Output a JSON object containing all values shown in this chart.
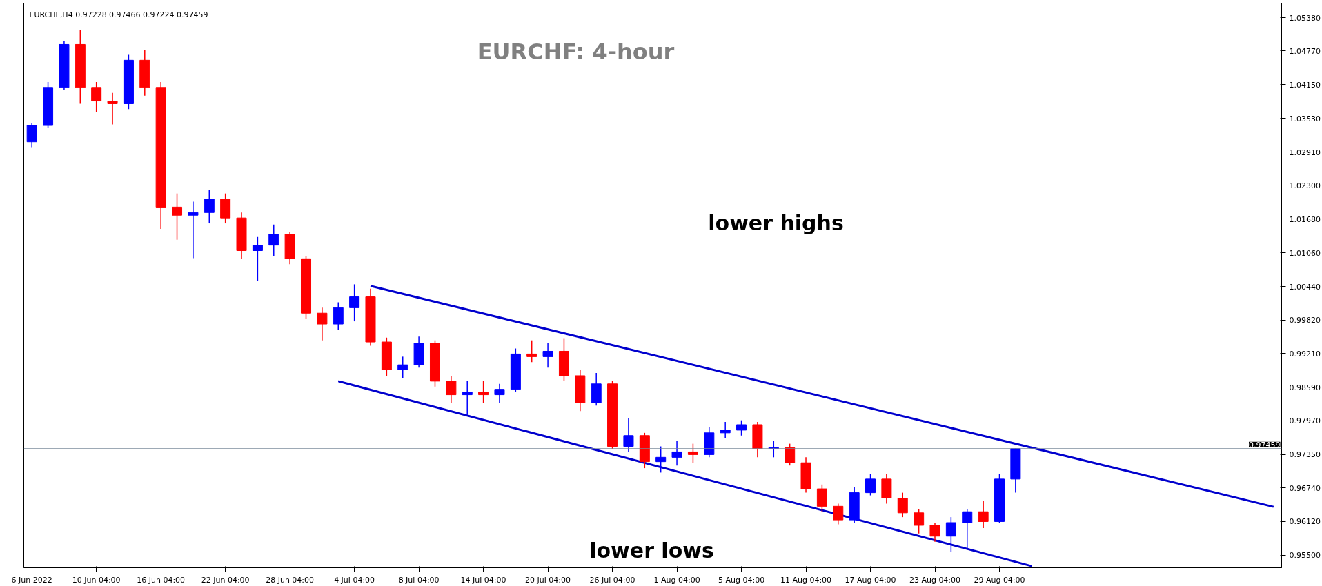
{
  "chart_data": {
    "type": "candlestick",
    "title": "EURCHF: 4-hour",
    "subtitle": "EURCHF,H4  0.97228 0.97466 0.97224 0.97459",
    "categories": [
      "6 Jun 2022",
      null,
      null,
      null,
      "10 Jun 04:00",
      null,
      null,
      null,
      "16 Jun 04:00",
      null,
      null,
      null,
      "22 Jun 04:00",
      null,
      null,
      null,
      "28 Jun 04:00",
      null,
      null,
      null,
      "4 Jul 04:00",
      null,
      null,
      null,
      "8 Jul 04:00",
      null,
      null,
      null,
      "14 Jul 04:00",
      null,
      null,
      null,
      "20 Jul 04:00",
      null,
      null,
      null,
      "26 Jul 04:00",
      null,
      null,
      null,
      "1 Aug 04:00",
      null,
      null,
      null,
      "5 Aug 04:00",
      null,
      null,
      null,
      "11 Aug 04:00",
      null,
      null,
      null,
      "17 Aug 04:00",
      null,
      null,
      null,
      "23 Aug 04:00",
      null,
      null,
      null,
      "29 Aug 04:00",
      null,
      null,
      null,
      null,
      null,
      null,
      null,
      null,
      null,
      null,
      null,
      null,
      null,
      null,
      null,
      null,
      null
    ],
    "ohlc": [
      [
        1.031,
        1.0345,
        1.03,
        1.034
      ],
      [
        1.034,
        1.042,
        1.0335,
        1.041
      ],
      [
        1.041,
        1.0495,
        1.0405,
        1.0489
      ],
      [
        1.0489,
        1.0515,
        1.038,
        1.041
      ],
      [
        1.041,
        1.042,
        1.0365,
        1.0385
      ],
      [
        1.0385,
        1.04,
        1.0342,
        1.038
      ],
      [
        1.038,
        1.047,
        1.037,
        1.046
      ],
      [
        1.046,
        1.0479,
        1.0395,
        1.041
      ],
      [
        1.041,
        1.042,
        1.015,
        1.019
      ],
      [
        1.019,
        1.0215,
        1.013,
        1.0175
      ],
      [
        1.0175,
        1.02,
        1.0096,
        1.018
      ],
      [
        1.018,
        1.0222,
        1.016,
        1.0205
      ],
      [
        1.0205,
        1.0215,
        1.016,
        1.017
      ],
      [
        1.017,
        1.018,
        1.0095,
        1.011
      ],
      [
        1.011,
        1.0135,
        1.0054,
        1.012
      ],
      [
        1.012,
        1.0158,
        1.01,
        1.014
      ],
      [
        1.014,
        1.0145,
        1.0085,
        1.0095
      ],
      [
        1.0095,
        1.01,
        0.9985,
        0.9995
      ],
      [
        0.9995,
        1.0005,
        0.9945,
        0.9975
      ],
      [
        0.9975,
        1.0015,
        0.9965,
        1.0005
      ],
      [
        1.0005,
        1.0048,
        0.998,
        1.0025
      ],
      [
        1.0025,
        1.004,
        0.9935,
        0.9942
      ],
      [
        0.9942,
        0.995,
        0.988,
        0.9891
      ],
      [
        0.9891,
        0.9915,
        0.9875,
        0.99
      ],
      [
        0.99,
        0.9952,
        0.9895,
        0.994
      ],
      [
        0.994,
        0.9945,
        0.986,
        0.987
      ],
      [
        0.987,
        0.988,
        0.983,
        0.9845
      ],
      [
        0.9845,
        0.987,
        0.9808,
        0.985
      ],
      [
        0.985,
        0.987,
        0.983,
        0.9845
      ],
      [
        0.9845,
        0.9865,
        0.983,
        0.9855
      ],
      [
        0.9855,
        0.993,
        0.985,
        0.992
      ],
      [
        0.992,
        0.9945,
        0.9905,
        0.9915
      ],
      [
        0.9915,
        0.994,
        0.9895,
        0.9925
      ],
      [
        0.9925,
        0.9949,
        0.987,
        0.988
      ],
      [
        0.988,
        0.989,
        0.9815,
        0.983
      ],
      [
        0.983,
        0.9885,
        0.9825,
        0.9865
      ],
      [
        0.9865,
        0.987,
        0.9745,
        0.975
      ],
      [
        0.975,
        0.9802,
        0.974,
        0.977
      ],
      [
        0.977,
        0.9775,
        0.971,
        0.9722
      ],
      [
        0.9722,
        0.975,
        0.9702,
        0.973
      ],
      [
        0.973,
        0.976,
        0.9715,
        0.974
      ],
      [
        0.974,
        0.9755,
        0.972,
        0.9735
      ],
      [
        0.9735,
        0.9785,
        0.973,
        0.9775
      ],
      [
        0.9775,
        0.9795,
        0.9765,
        0.978
      ],
      [
        0.978,
        0.9798,
        0.977,
        0.979
      ],
      [
        0.979,
        0.9795,
        0.973,
        0.9745
      ],
      [
        0.9745,
        0.976,
        0.973,
        0.9748
      ],
      [
        0.9748,
        0.9755,
        0.9715,
        0.972
      ],
      [
        0.972,
        0.973,
        0.9665,
        0.9672
      ],
      [
        0.9672,
        0.968,
        0.963,
        0.964
      ],
      [
        0.964,
        0.9645,
        0.9607,
        0.9615
      ],
      [
        0.9615,
        0.9675,
        0.961,
        0.9665
      ],
      [
        0.9665,
        0.9699,
        0.966,
        0.969
      ],
      [
        0.969,
        0.97,
        0.9645,
        0.9655
      ],
      [
        0.9655,
        0.9665,
        0.962,
        0.9628
      ],
      [
        0.9628,
        0.9635,
        0.959,
        0.9605
      ],
      [
        0.9605,
        0.961,
        0.9575,
        0.9585
      ],
      [
        0.9585,
        0.962,
        0.9556,
        0.961
      ],
      [
        0.961,
        0.9635,
        0.9562,
        0.963
      ],
      [
        0.963,
        0.965,
        0.96,
        0.9612
      ],
      [
        0.9612,
        0.97,
        0.961,
        0.969
      ],
      [
        0.969,
        0.97466,
        0.9665,
        0.97459
      ],
      null,
      null,
      null,
      null,
      null,
      null,
      null,
      null,
      null,
      null,
      null,
      null,
      null,
      null,
      null,
      null
    ],
    "colors": [
      "#0000ff",
      "#0000ff",
      "#0000ff",
      "#ff0000",
      "#ff0000",
      "#ff0000",
      "#0000ff",
      "#ff0000",
      "#ff0000",
      "#ff0000",
      "#0000ff",
      "#0000ff",
      "#ff0000",
      "#ff0000",
      "#0000ff",
      "#0000ff",
      "#ff0000",
      "#ff0000",
      "#ff0000",
      "#0000ff",
      "#0000ff",
      "#ff0000",
      "#ff0000",
      "#0000ff",
      "#0000ff",
      "#ff0000",
      "#ff0000",
      "#0000ff",
      "#ff0000",
      "#0000ff",
      "#0000ff",
      "#ff0000",
      "#0000ff",
      "#ff0000",
      "#ff0000",
      "#0000ff",
      "#ff0000",
      "#0000ff",
      "#ff0000",
      "#0000ff",
      "#0000ff",
      "#ff0000",
      "#0000ff",
      "#0000ff",
      "#0000ff",
      "#ff0000",
      "#0000ff",
      "#ff0000",
      "#ff0000",
      "#ff0000",
      "#ff0000",
      "#0000ff",
      "#0000ff",
      "#ff0000",
      "#ff0000",
      "#ff0000",
      "#ff0000",
      "#0000ff",
      "#0000ff",
      "#ff0000",
      "#0000ff",
      "#0000ff",
      null,
      null,
      null,
      null,
      null,
      null,
      null,
      null,
      null,
      null,
      null,
      null,
      null,
      null,
      null,
      null
    ],
    "series": [
      {
        "type": "line",
        "color": "#0000cd",
        "values": [
          null,
          null,
          null,
          null,
          null,
          null,
          null,
          null,
          null,
          null,
          null,
          null,
          null,
          null,
          null,
          null,
          null,
          null,
          null,
          null,
          null,
          1.0045,
          null,
          null,
          null,
          null,
          null,
          null,
          null,
          null,
          null,
          null,
          null,
          null,
          null,
          null,
          null,
          null,
          null,
          null,
          null,
          null,
          null,
          null,
          null,
          null,
          null,
          null,
          null,
          null,
          null,
          null,
          null,
          null,
          null,
          null,
          null,
          null,
          null,
          null,
          null,
          null,
          null,
          null,
          null,
          null,
          null,
          null,
          null,
          null,
          null,
          null,
          null,
          null,
          null,
          null,
          null,
          0.9639
        ]
      },
      {
        "type": "line",
        "color": "#0000cd",
        "values": [
          null,
          null,
          null,
          null,
          null,
          null,
          null,
          null,
          null,
          null,
          null,
          null,
          null,
          null,
          null,
          null,
          null,
          null,
          null,
          0.987,
          null,
          null,
          null,
          null,
          null,
          null,
          null,
          null,
          null,
          null,
          null,
          null,
          null,
          null,
          null,
          null,
          null,
          null,
          null,
          null,
          null,
          null,
          null,
          null,
          null,
          null,
          null,
          null,
          null,
          null,
          null,
          null,
          null,
          null,
          null,
          null,
          null,
          null,
          null,
          null,
          null,
          null,
          0.953,
          null,
          null,
          null,
          null,
          null,
          null,
          null,
          null,
          null,
          null,
          null,
          null,
          null,
          null,
          null
        ]
      }
    ],
    "ylim": [
      0.9527,
      1.0565
    ],
    "yticks": [
      {
        "value": 0.955,
        "label": "0.95500"
      },
      {
        "value": 0.9612,
        "label": "0.96120"
      },
      {
        "value": 0.9674,
        "label": "0.96740"
      },
      {
        "value": 0.9735,
        "label": "0.97350"
      },
      {
        "value": 0.9797,
        "label": "0.97970"
      },
      {
        "value": 0.9859,
        "label": "0.98590"
      },
      {
        "value": 0.9921,
        "label": "0.99210"
      },
      {
        "value": 0.9982,
        "label": "0.99820"
      },
      {
        "value": 1.0044,
        "label": "1.00440"
      },
      {
        "value": 1.0106,
        "label": "1.01060"
      },
      {
        "value": 1.0168,
        "label": "1.01680"
      },
      {
        "value": 1.023,
        "label": "1.02300"
      },
      {
        "value": 1.0291,
        "label": "1.02910"
      },
      {
        "value": 1.0353,
        "label": "1.03530"
      },
      {
        "value": 1.0415,
        "label": "1.04150"
      },
      {
        "value": 1.0477,
        "label": "1.04770"
      },
      {
        "value": 1.0538,
        "label": "1.05380"
      }
    ],
    "ref_lines": [
      {
        "axis": "y",
        "value": 0.97459,
        "label": "0.97459",
        "color": "#778899"
      }
    ],
    "annotations": [
      "lower highs",
      "lower lows"
    ],
    "grid": false
  }
}
